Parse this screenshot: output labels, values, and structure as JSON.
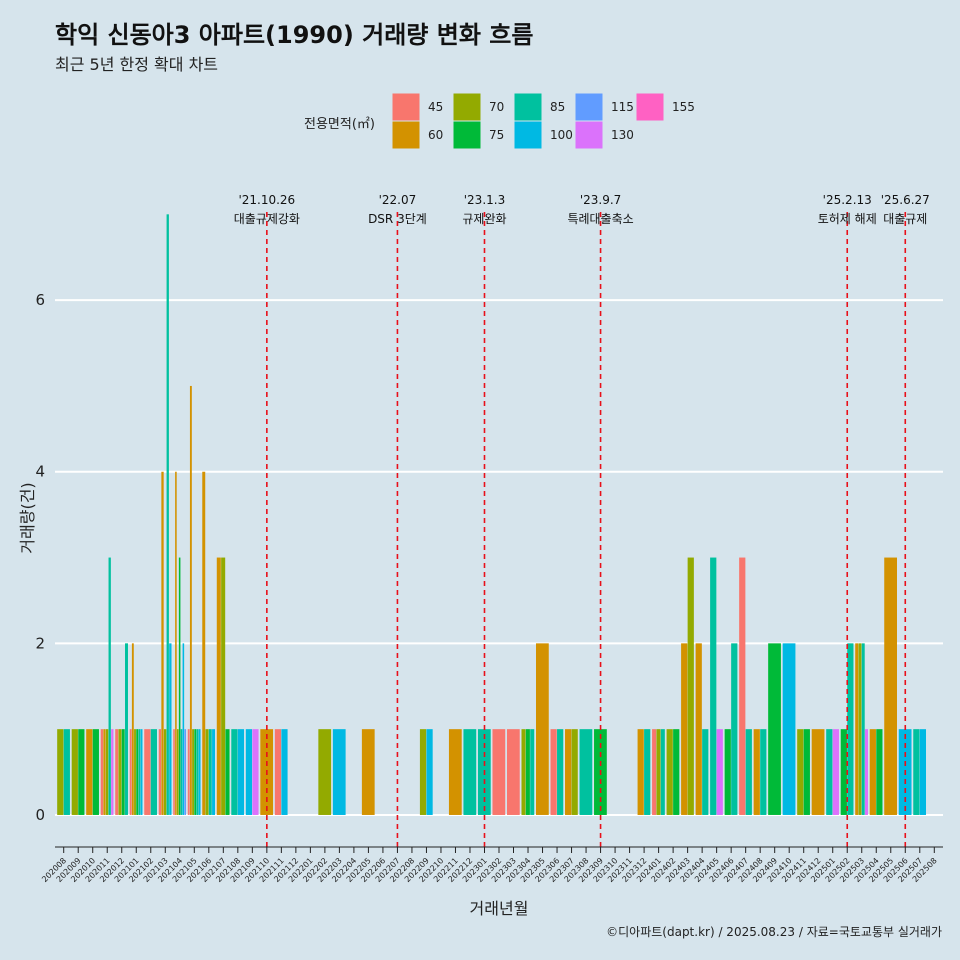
{
  "title": "학익 신동아3 아파트(1990) 거래량 변화 흐름",
  "subtitle": "최근 5년 한정 확대 차트",
  "caption": "©디아파트(dapt.kr) / 2025.08.23 / 자료=국토교통부 실거래가",
  "colors": {
    "background": "#d6e4ec",
    "grid": "#ffffff",
    "event_line": "#e8101a",
    "area_45": "#f8766d",
    "area_60": "#d39200",
    "area_70": "#93aa00",
    "area_75": "#00ba38",
    "area_85": "#00c19f",
    "area_100": "#00b9e3",
    "area_115": "#619cff",
    "area_130": "#db72fb",
    "area_155": "#ff61c3"
  },
  "chart_data": {
    "type": "bar",
    "title": "학익 신동아3 아파트(1990) 거래량 변화 흐름",
    "subtitle": "최근 5년 한정 확대 차트",
    "xlabel": "거래년월",
    "ylabel": "거래량(건)",
    "ylim": [
      -0.35,
      7.4
    ],
    "yticks": [
      0,
      2,
      4,
      6
    ],
    "grid": true,
    "legend": {
      "title": "전용면적(㎡)",
      "position": "top",
      "entries": [
        "45",
        "60",
        "70",
        "75",
        "85",
        "100",
        "115",
        "130",
        "155"
      ]
    },
    "categories": [
      "202008",
      "202009",
      "202010",
      "202011",
      "202012",
      "202101",
      "202102",
      "202103",
      "202104",
      "202105",
      "202106",
      "202107",
      "202108",
      "202109",
      "202110",
      "202111",
      "202112",
      "202201",
      "202202",
      "202203",
      "202204",
      "202205",
      "202206",
      "202207",
      "202208",
      "202209",
      "202210",
      "202211",
      "202212",
      "202301",
      "202302",
      "202303",
      "202304",
      "202305",
      "202306",
      "202307",
      "202308",
      "202309",
      "202310",
      "202311",
      "202312",
      "202401",
      "202402",
      "202403",
      "202404",
      "202405",
      "202406",
      "202407",
      "202408",
      "202409",
      "202410",
      "202411",
      "202412",
      "202501",
      "202502",
      "202503",
      "202504",
      "202505",
      "202506",
      "202507",
      "202508"
    ],
    "series": [
      {
        "name": "45",
        "values": [
          0,
          0,
          0,
          1,
          1,
          1,
          1,
          1,
          1,
          1,
          0,
          0,
          0,
          0,
          0,
          1,
          0,
          0,
          0,
          0,
          0,
          0,
          0,
          0,
          0,
          0,
          0,
          0,
          0,
          0,
          1,
          1,
          0,
          0,
          1,
          0,
          0,
          0,
          0,
          0,
          0,
          1,
          0,
          0,
          0,
          0,
          0,
          3,
          0,
          0,
          0,
          0,
          0,
          0,
          0,
          0,
          0,
          0,
          0,
          0,
          0
        ]
      },
      {
        "name": "60",
        "values": [
          0,
          0,
          1,
          1,
          0,
          2,
          0,
          4,
          4,
          5,
          4,
          3,
          0,
          0,
          1,
          0,
          0,
          0,
          0,
          0,
          0,
          1,
          0,
          0,
          0,
          0,
          0,
          1,
          0,
          0,
          0,
          0,
          0,
          2,
          0,
          1,
          0,
          0,
          0,
          0,
          1,
          0,
          0,
          2,
          2,
          0,
          0,
          0,
          1,
          0,
          0,
          0,
          1,
          0,
          0,
          2,
          1,
          3,
          0,
          0,
          0
        ]
      },
      {
        "name": "70",
        "values": [
          1,
          1,
          0,
          1,
          1,
          1,
          0,
          1,
          1,
          1,
          1,
          3,
          0,
          0,
          0,
          0,
          0,
          0,
          1,
          0,
          0,
          0,
          0,
          0,
          0,
          1,
          0,
          0,
          0,
          0,
          0,
          0,
          1,
          0,
          0,
          1,
          0,
          0,
          0,
          0,
          0,
          1,
          1,
          3,
          0,
          0,
          0,
          0,
          0,
          0,
          0,
          1,
          0,
          0,
          0,
          2,
          0,
          0,
          0,
          0,
          0
        ]
      },
      {
        "name": "75",
        "values": [
          0,
          1,
          1,
          0,
          1,
          1,
          0,
          0,
          3,
          1,
          0,
          1,
          0,
          0,
          0,
          0,
          0,
          0,
          0,
          0,
          0,
          0,
          0,
          0,
          0,
          0,
          0,
          0,
          0,
          0,
          0,
          0,
          1,
          0,
          0,
          0,
          0,
          1,
          0,
          0,
          0,
          0,
          1,
          0,
          0,
          0,
          1,
          0,
          0,
          2,
          0,
          1,
          0,
          0,
          1,
          0,
          1,
          0,
          0,
          0,
          0
        ]
      },
      {
        "name": "85",
        "values": [
          1,
          0,
          0,
          3,
          2,
          1,
          1,
          7,
          1,
          1,
          1,
          0,
          1,
          0,
          0,
          0,
          0,
          0,
          0,
          0,
          0,
          0,
          0,
          0,
          0,
          0,
          0,
          0,
          1,
          1,
          0,
          0,
          1,
          0,
          1,
          0,
          1,
          0,
          0,
          0,
          1,
          1,
          0,
          0,
          1,
          3,
          2,
          1,
          1,
          0,
          0,
          0,
          0,
          1,
          2,
          2,
          0,
          0,
          0,
          1,
          0
        ]
      },
      {
        "name": "100",
        "values": [
          0,
          0,
          0,
          0,
          0,
          1,
          0,
          2,
          2,
          1,
          1,
          0,
          1,
          1,
          0,
          1,
          0,
          0,
          0,
          1,
          0,
          0,
          0,
          0,
          0,
          1,
          0,
          0,
          0,
          0,
          0,
          0,
          0,
          0,
          0,
          0,
          0,
          0,
          0,
          0,
          0,
          0,
          0,
          0,
          0,
          0,
          0,
          0,
          0,
          0,
          2,
          0,
          0,
          0,
          0,
          0,
          0,
          0,
          1,
          1,
          0
        ]
      },
      {
        "name": "115",
        "values": [
          0,
          0,
          0,
          0,
          0,
          0,
          0,
          0,
          1,
          0,
          0,
          0,
          0,
          0,
          0,
          0,
          0,
          0,
          0,
          0,
          0,
          0,
          0,
          0,
          0,
          0,
          0,
          0,
          0,
          0,
          0,
          0,
          0,
          0,
          0,
          0,
          0,
          0,
          0,
          0,
          0,
          0,
          0,
          0,
          0,
          0,
          0,
          0,
          0,
          0,
          0,
          0,
          0,
          0,
          0,
          0,
          0,
          0,
          0,
          0,
          0
        ]
      },
      {
        "name": "130",
        "values": [
          0,
          0,
          0,
          1,
          0,
          0,
          0,
          0,
          0,
          0,
          0,
          0,
          0,
          1,
          0,
          0,
          0,
          0,
          0,
          0,
          0,
          0,
          0,
          0,
          0,
          0,
          0,
          0,
          0,
          0,
          0,
          0,
          0,
          0,
          0,
          0,
          0,
          0,
          0,
          0,
          0,
          0,
          0,
          0,
          0,
          1,
          0,
          0,
          0,
          0,
          0,
          0,
          0,
          1,
          0,
          1,
          0,
          0,
          0,
          0,
          0
        ]
      },
      {
        "name": "155",
        "values": [
          0,
          0,
          0,
          0,
          0,
          0,
          0,
          0,
          0,
          0,
          0,
          0,
          0,
          0,
          0,
          0,
          0,
          0,
          0,
          0,
          0,
          0,
          0,
          0,
          0,
          0,
          0,
          0,
          0,
          0,
          0,
          0,
          0,
          0,
          0,
          0,
          0,
          0,
          0,
          0,
          0,
          0,
          0,
          0,
          0,
          0,
          0,
          0,
          0,
          0,
          0,
          0,
          0,
          0,
          0,
          0,
          0,
          0,
          0,
          0,
          0
        ]
      }
    ],
    "events": [
      {
        "x": "202110",
        "date": "'21.10.26",
        "label": "대출규제강화"
      },
      {
        "x": "202207",
        "date": "'22.07",
        "label": "DSR 3단계"
      },
      {
        "x": "202301",
        "date": "'23.1.3",
        "label": "규제완화"
      },
      {
        "x": "202309",
        "date": "'23.9.7",
        "label": "특례대출축소"
      },
      {
        "x": "202502",
        "date": "'25.2.13",
        "label": "토허제 해제"
      },
      {
        "x": "202506",
        "date": "'25.6.27",
        "label": "대출규제"
      }
    ]
  }
}
